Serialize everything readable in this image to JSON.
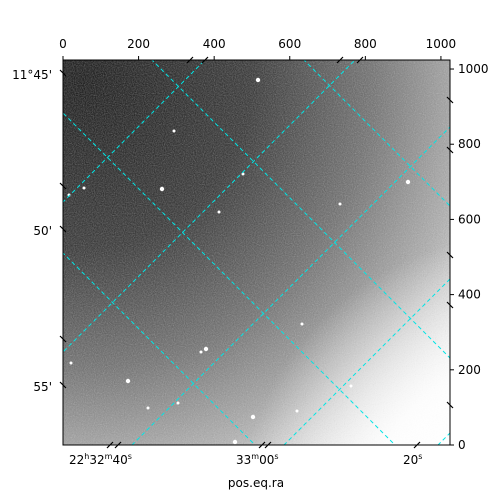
{
  "chart_data": {
    "type": "heatmap",
    "image": {
      "colormap": "gray",
      "description_of_content": "noisy grayscale sky image, dark upper-left, brightening to white toward lower-right"
    },
    "pixel_axes": {
      "top": {
        "ticks": [
          0,
          200,
          400,
          600,
          800,
          1000
        ],
        "labels": [
          "0",
          "200",
          "400",
          "600",
          "800",
          "1000"
        ],
        "range": [
          0,
          1024
        ]
      },
      "right": {
        "ticks": [
          0,
          200,
          400,
          600,
          800,
          1000
        ],
        "labels": [
          "0",
          "200",
          "400",
          "600",
          "800",
          "1000"
        ],
        "range": [
          0,
          1024
        ]
      }
    },
    "ra_axis": {
      "xlabel": "pos.eq.ra",
      "tick_labels": [
        {
          "h": "22",
          "m": "32",
          "s": "40"
        },
        {
          "m": "33",
          "s": "00"
        },
        {
          "s": "20"
        }
      ]
    },
    "dec_axis": {
      "tick_labels": [
        "11°45'",
        "50'",
        "55'"
      ]
    },
    "grid": true,
    "grid_color": "#00e5e5"
  }
}
